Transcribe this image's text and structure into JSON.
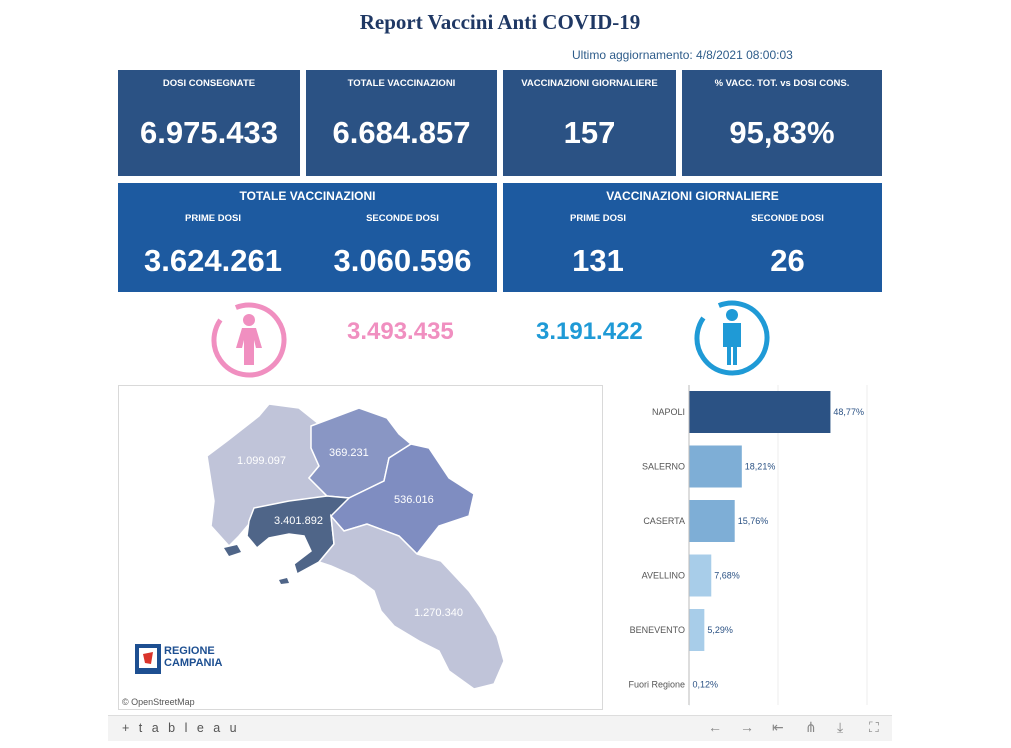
{
  "header": {
    "title": "Report Vaccini Anti COVID-19",
    "updated": "Ultimo aggiornamento: 4/8/2021 08:00:03"
  },
  "kpis": [
    {
      "label": "DOSI  CONSEGNATE",
      "value": "6.975.433"
    },
    {
      "label": "TOTALE VACCINAZIONI",
      "value": "6.684.857"
    },
    {
      "label": "VACCINAZIONI GIORNALIERE",
      "value": "157"
    },
    {
      "label": "% VACC. TOT. vs DOSI CONS.",
      "value": "95,83%"
    }
  ],
  "totale": {
    "title": "TOTALE VACCINAZIONI",
    "first_label": "PRIME DOSI",
    "first_value": "3.624.261",
    "second_label": "SECONDE DOSI",
    "second_value": "3.060.596"
  },
  "giornaliere": {
    "title": "VACCINAZIONI GIORNALIERE",
    "first_label": "PRIME DOSI",
    "first_value": "131",
    "second_label": "SECONDE DOSI",
    "second_value": "26"
  },
  "gender": {
    "female_value": "3.493.435",
    "male_value": "3.191.422",
    "female_color": "#f08fc0",
    "male_color": "#1f9ad6"
  },
  "map": {
    "labels": {
      "caserta": "1.099.097",
      "benevento": "369.231",
      "avellino": "536.016",
      "napoli": "3.401.892",
      "salerno": "1.270.340"
    },
    "logo_line1": "REGIONE",
    "logo_line2": "CAMPANIA",
    "attribution": "© OpenStreetMap"
  },
  "chart_data": {
    "type": "bar",
    "orientation": "horizontal",
    "categories": [
      "NAPOLI",
      "SALERNO",
      "CASERTA",
      "AVELLINO",
      "BENEVENTO",
      "Fuori Regione"
    ],
    "values": [
      48.77,
      18.21,
      15.76,
      7.68,
      5.29,
      0.12
    ],
    "value_labels": [
      "48,77%",
      "18,21%",
      "15,76%",
      "7,68%",
      "5,29%",
      "0,12%"
    ],
    "colors": [
      "#2b5284",
      "#7eaed6",
      "#7eaed6",
      "#a8cde9",
      "#a8cde9",
      "#c9def0"
    ]
  },
  "toolbar": {
    "brand": "+ t a b l e a u",
    "icons": [
      "undo-icon",
      "redo-icon",
      "revert-icon",
      "share-icon",
      "download-icon",
      "fullscreen-icon"
    ]
  }
}
